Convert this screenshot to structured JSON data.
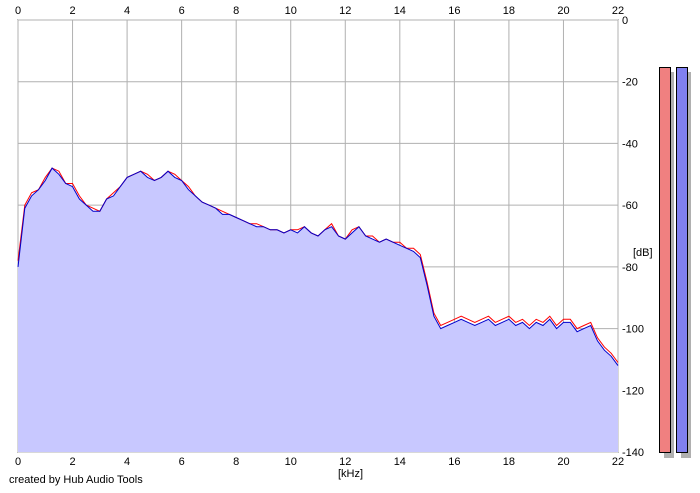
{
  "app": {
    "credit": "created by Hub Audio Tools"
  },
  "colors": {
    "fill": "#c8c8ff",
    "left_channel": "#ff0000",
    "right_channel": "#0000cc",
    "grid": "#b0b0b0",
    "meter_left": "#f08080",
    "meter_right": "#8080f0"
  },
  "chart_data": {
    "type": "area",
    "title": "",
    "xlabel": "[kHz]",
    "ylabel": "[dB]",
    "xlim": [
      0,
      22
    ],
    "ylim": [
      -140,
      0
    ],
    "grid": true,
    "x_ticks": [
      "0",
      "2",
      "4",
      "6",
      "8",
      "10",
      "12",
      "14",
      "16",
      "18",
      "20",
      "22"
    ],
    "y_ticks": [
      "0",
      "-20",
      "-40",
      "-60",
      "-80",
      "-100",
      "-120",
      "-140"
    ],
    "series": [
      {
        "x": [
          0,
          0.25,
          0.5,
          0.75,
          1,
          1.25,
          1.5,
          1.75,
          2,
          2.25,
          2.5,
          2.75,
          3,
          3.25,
          3.5,
          3.75,
          4,
          4.25,
          4.5,
          4.75,
          5,
          5.25,
          5.5,
          5.75,
          6,
          6.25,
          6.5,
          6.75,
          7,
          7.25,
          7.5,
          7.75,
          8,
          8.25,
          8.5,
          8.75,
          9,
          9.25,
          9.5,
          9.75,
          10,
          10.25,
          10.5,
          10.75,
          11,
          11.25,
          11.5,
          11.75,
          12,
          12.25,
          12.5,
          12.75,
          13,
          13.25,
          13.5,
          13.75,
          14,
          14.25,
          14.5,
          14.75,
          15,
          15.25,
          15.5,
          15.75,
          16,
          16.25,
          16.5,
          16.75,
          17,
          17.25,
          17.5,
          17.75,
          18,
          18.25,
          18.5,
          18.75,
          19,
          19.25,
          19.5,
          19.75,
          20,
          20.25,
          20.5,
          20.75,
          21,
          21.25,
          21.5,
          21.75,
          22
        ],
        "values": [
          -78,
          -60,
          -56,
          -55,
          -51,
          -48,
          -49,
          -53,
          -53,
          -57,
          -60,
          -61,
          -62,
          -58,
          -56,
          -54,
          -51,
          -50,
          -49,
          -50,
          -52,
          -51,
          -49,
          -50,
          -52,
          -54,
          -57,
          -59,
          -60,
          -61,
          -62,
          -63,
          -64,
          -65,
          -66,
          -66,
          -67,
          -68,
          -68,
          -69,
          -68,
          -68,
          -67,
          -69,
          -70,
          -68,
          -66,
          -70,
          -71,
          -68,
          -67,
          -70,
          -70,
          -72,
          -71,
          -72,
          -72,
          -74,
          -74,
          -76,
          -85,
          -95,
          -99,
          -98,
          -97,
          -96,
          -97,
          -98,
          -97,
          -96,
          -98,
          -97,
          -96,
          -98,
          -97,
          -99,
          -97,
          -98,
          -96,
          -99,
          -97,
          -97,
          -100,
          -99,
          -98,
          -103,
          -106,
          -108,
          -111
        ]
      },
      {
        "x": [
          0,
          0.25,
          0.5,
          0.75,
          1,
          1.25,
          1.5,
          1.75,
          2,
          2.25,
          2.5,
          2.75,
          3,
          3.25,
          3.5,
          3.75,
          4,
          4.25,
          4.5,
          4.75,
          5,
          5.25,
          5.5,
          5.75,
          6,
          6.25,
          6.5,
          6.75,
          7,
          7.25,
          7.5,
          7.75,
          8,
          8.25,
          8.5,
          8.75,
          9,
          9.25,
          9.5,
          9.75,
          10,
          10.25,
          10.5,
          10.75,
          11,
          11.25,
          11.5,
          11.75,
          12,
          12.25,
          12.5,
          12.75,
          13,
          13.25,
          13.5,
          13.75,
          14,
          14.25,
          14.5,
          14.75,
          15,
          15.25,
          15.5,
          15.75,
          16,
          16.25,
          16.5,
          16.75,
          17,
          17.25,
          17.5,
          17.75,
          18,
          18.25,
          18.5,
          18.75,
          19,
          19.25,
          19.5,
          19.75,
          20,
          20.25,
          20.5,
          20.75,
          21,
          21.25,
          21.5,
          21.75,
          22
        ],
        "values": [
          -80,
          -61,
          -57,
          -55,
          -52,
          -48,
          -50,
          -53,
          -54,
          -58,
          -60,
          -62,
          -62,
          -58,
          -57,
          -54,
          -51,
          -50,
          -49,
          -51,
          -52,
          -51,
          -49,
          -51,
          -52,
          -55,
          -57,
          -59,
          -60,
          -61,
          -63,
          -63,
          -64,
          -65,
          -66,
          -67,
          -67,
          -68,
          -68,
          -69,
          -68,
          -69,
          -67,
          -69,
          -70,
          -68,
          -67,
          -70,
          -71,
          -69,
          -67,
          -70,
          -71,
          -72,
          -71,
          -72,
          -73,
          -74,
          -75,
          -77,
          -86,
          -96,
          -100,
          -99,
          -98,
          -97,
          -98,
          -99,
          -98,
          -97,
          -99,
          -98,
          -97,
          -99,
          -98,
          -100,
          -98,
          -99,
          -97,
          -100,
          -98,
          -98,
          -101,
          -100,
          -99,
          -104,
          -107,
          -109,
          -112
        ]
      }
    ]
  }
}
